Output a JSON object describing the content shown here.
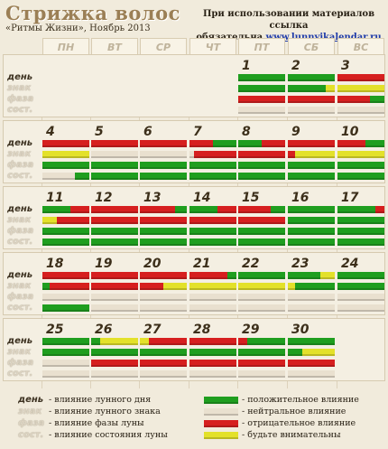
{
  "header": {
    "title": "Стрижка волос",
    "subtitle": "«Ритмы Жизни», Ноябрь 2013",
    "notice_line1": "При использовании материалов ссылка",
    "notice_prefix": "обязательна ",
    "notice_link": "www.lunnyjkalendar.ru"
  },
  "weekdays": [
    "ПН",
    "ВТ",
    "СР",
    "ЧТ",
    "ПТ",
    "СБ",
    "ВС"
  ],
  "row_labels": {
    "day": "день",
    "sign": "знак",
    "phase": "фаза",
    "state": "сост."
  },
  "colors": {
    "positive": "#1f9e1f",
    "negative": "#d61f1f",
    "attention": "#e3e12a",
    "neutral": "#e9e0cf"
  },
  "days": [
    {
      "n": "1",
      "col": 4,
      "week": 0,
      "day": [
        [
          "g",
          1
        ]
      ],
      "sign": [
        [
          "g",
          1
        ]
      ],
      "phase": [
        [
          "r",
          1
        ]
      ],
      "state": [
        [
          "n",
          1
        ]
      ]
    },
    {
      "n": "2",
      "col": 5,
      "week": 0,
      "day": [
        [
          "g",
          1
        ]
      ],
      "sign": [
        [
          "g",
          0.8
        ],
        [
          "y",
          0.2
        ]
      ],
      "phase": [
        [
          "r",
          1
        ]
      ],
      "state": [
        [
          "n",
          1
        ]
      ]
    },
    {
      "n": "3",
      "col": 6,
      "week": 0,
      "day": [
        [
          "r",
          1
        ]
      ],
      "sign": [
        [
          "y",
          1
        ]
      ],
      "phase": [
        [
          "r",
          0.7
        ],
        [
          "g",
          0.3
        ]
      ],
      "state": [
        [
          "n",
          1
        ]
      ]
    },
    {
      "n": "4",
      "col": 0,
      "week": 1,
      "day": [
        [
          "r",
          1
        ]
      ],
      "sign": [
        [
          "y",
          1
        ]
      ],
      "phase": [
        [
          "g",
          1
        ]
      ],
      "state": [
        [
          "n",
          0.7
        ],
        [
          "g",
          0.3
        ]
      ]
    },
    {
      "n": "5",
      "col": 1,
      "week": 1,
      "day": [
        [
          "r",
          1
        ]
      ],
      "sign": [
        [
          "n",
          1
        ]
      ],
      "phase": [
        [
          "g",
          1
        ]
      ],
      "state": [
        [
          "g",
          1
        ]
      ]
    },
    {
      "n": "6",
      "col": 2,
      "week": 1,
      "day": [
        [
          "r",
          1
        ]
      ],
      "sign": [
        [
          "n",
          1
        ]
      ],
      "phase": [
        [
          "g",
          1
        ]
      ],
      "state": [
        [
          "g",
          1
        ]
      ]
    },
    {
      "n": "7",
      "col": 3,
      "week": 1,
      "day": [
        [
          "r",
          0.5
        ],
        [
          "g",
          0.5
        ]
      ],
      "sign": [
        [
          "n",
          0.1
        ],
        [
          "r",
          0.9
        ]
      ],
      "phase": [
        [
          "g",
          1
        ]
      ],
      "state": [
        [
          "g",
          1
        ]
      ]
    },
    {
      "n": "8",
      "col": 4,
      "week": 1,
      "day": [
        [
          "g",
          0.5
        ],
        [
          "r",
          0.5
        ]
      ],
      "sign": [
        [
          "r",
          1
        ]
      ],
      "phase": [
        [
          "g",
          1
        ]
      ],
      "state": [
        [
          "g",
          1
        ]
      ]
    },
    {
      "n": "9",
      "col": 5,
      "week": 1,
      "day": [
        [
          "r",
          1
        ]
      ],
      "sign": [
        [
          "r",
          0.15
        ],
        [
          "y",
          0.85
        ]
      ],
      "phase": [
        [
          "g",
          1
        ]
      ],
      "state": [
        [
          "g",
          1
        ]
      ]
    },
    {
      "n": "10",
      "col": 6,
      "week": 1,
      "day": [
        [
          "r",
          0.6
        ],
        [
          "g",
          0.4
        ]
      ],
      "sign": [
        [
          "y",
          1
        ]
      ],
      "phase": [
        [
          "g",
          1
        ]
      ],
      "state": [
        [
          "g",
          1
        ]
      ]
    },
    {
      "n": "11",
      "col": 0,
      "week": 2,
      "day": [
        [
          "g",
          0.6
        ],
        [
          "r",
          0.4
        ]
      ],
      "sign": [
        [
          "y",
          0.3
        ],
        [
          "r",
          0.7
        ]
      ],
      "phase": [
        [
          "g",
          1
        ]
      ],
      "state": [
        [
          "g",
          1
        ]
      ]
    },
    {
      "n": "12",
      "col": 1,
      "week": 2,
      "day": [
        [
          "r",
          1
        ]
      ],
      "sign": [
        [
          "r",
          1
        ]
      ],
      "phase": [
        [
          "g",
          1
        ]
      ],
      "state": [
        [
          "g",
          1
        ]
      ]
    },
    {
      "n": "13",
      "col": 2,
      "week": 2,
      "day": [
        [
          "r",
          0.75
        ],
        [
          "g",
          0.25
        ]
      ],
      "sign": [
        [
          "r",
          1
        ]
      ],
      "phase": [
        [
          "g",
          1
        ]
      ],
      "state": [
        [
          "g",
          1
        ]
      ]
    },
    {
      "n": "14",
      "col": 3,
      "week": 2,
      "day": [
        [
          "g",
          0.6
        ],
        [
          "r",
          0.4
        ]
      ],
      "sign": [
        [
          "r",
          1
        ]
      ],
      "phase": [
        [
          "g",
          1
        ]
      ],
      "state": [
        [
          "g",
          1
        ]
      ]
    },
    {
      "n": "15",
      "col": 4,
      "week": 2,
      "day": [
        [
          "r",
          0.7
        ],
        [
          "g",
          0.3
        ]
      ],
      "sign": [
        [
          "r",
          1
        ]
      ],
      "phase": [
        [
          "g",
          1
        ]
      ],
      "state": [
        [
          "g",
          1
        ]
      ]
    },
    {
      "n": "16",
      "col": 5,
      "week": 2,
      "day": [
        [
          "g",
          1
        ]
      ],
      "sign": [
        [
          "g",
          1
        ]
      ],
      "phase": [
        [
          "g",
          1
        ]
      ],
      "state": [
        [
          "g",
          1
        ]
      ]
    },
    {
      "n": "17",
      "col": 6,
      "week": 2,
      "day": [
        [
          "g",
          0.8
        ],
        [
          "r",
          0.2
        ]
      ],
      "sign": [
        [
          "g",
          1
        ]
      ],
      "phase": [
        [
          "g",
          1
        ]
      ],
      "state": [
        [
          "g",
          1
        ]
      ]
    },
    {
      "n": "18",
      "col": 0,
      "week": 3,
      "day": [
        [
          "r",
          1
        ]
      ],
      "sign": [
        [
          "g",
          0.15
        ],
        [
          "r",
          0.85
        ]
      ],
      "phase": [
        [
          "n",
          1
        ]
      ],
      "state": [
        [
          "g",
          1
        ]
      ]
    },
    {
      "n": "19",
      "col": 1,
      "week": 3,
      "day": [
        [
          "r",
          1
        ]
      ],
      "sign": [
        [
          "r",
          1
        ]
      ],
      "phase": [
        [
          "n",
          1
        ]
      ],
      "state": [
        [
          "n",
          1
        ]
      ]
    },
    {
      "n": "20",
      "col": 2,
      "week": 3,
      "day": [
        [
          "r",
          1
        ]
      ],
      "sign": [
        [
          "r",
          0.5
        ],
        [
          "y",
          0.5
        ]
      ],
      "phase": [
        [
          "n",
          1
        ]
      ],
      "state": [
        [
          "n",
          1
        ]
      ]
    },
    {
      "n": "21",
      "col": 3,
      "week": 3,
      "day": [
        [
          "r",
          0.8
        ],
        [
          "g",
          0.2
        ]
      ],
      "sign": [
        [
          "y",
          1
        ]
      ],
      "phase": [
        [
          "n",
          1
        ]
      ],
      "state": [
        [
          "n",
          1
        ]
      ]
    },
    {
      "n": "22",
      "col": 4,
      "week": 3,
      "day": [
        [
          "g",
          1
        ]
      ],
      "sign": [
        [
          "y",
          1
        ]
      ],
      "phase": [
        [
          "n",
          1
        ]
      ],
      "state": [
        [
          "n",
          1
        ]
      ]
    },
    {
      "n": "23",
      "col": 5,
      "week": 3,
      "day": [
        [
          "g",
          0.7
        ],
        [
          "y",
          0.3
        ]
      ],
      "sign": [
        [
          "y",
          0.15
        ],
        [
          "g",
          0.85
        ]
      ],
      "phase": [
        [
          "n",
          1
        ]
      ],
      "state": [
        [
          "n",
          1
        ]
      ]
    },
    {
      "n": "24",
      "col": 6,
      "week": 3,
      "day": [
        [
          "g",
          1
        ]
      ],
      "sign": [
        [
          "g",
          1
        ]
      ],
      "phase": [
        [
          "n",
          1
        ]
      ],
      "state": [
        [
          "n",
          1
        ]
      ]
    },
    {
      "n": "25",
      "col": 0,
      "week": 4,
      "day": [
        [
          "g",
          1
        ]
      ],
      "sign": [
        [
          "g",
          1
        ]
      ],
      "phase": [
        [
          "n",
          1
        ]
      ],
      "state": [
        [
          "n",
          1
        ]
      ]
    },
    {
      "n": "26",
      "col": 1,
      "week": 4,
      "day": [
        [
          "g",
          0.2
        ],
        [
          "y",
          0.8
        ]
      ],
      "sign": [
        [
          "g",
          1
        ]
      ],
      "phase": [
        [
          "r",
          1
        ]
      ],
      "state": [
        [
          "n",
          1
        ]
      ]
    },
    {
      "n": "27",
      "col": 2,
      "week": 4,
      "day": [
        [
          "y",
          0.2
        ],
        [
          "r",
          0.8
        ]
      ],
      "sign": [
        [
          "g",
          1
        ]
      ],
      "phase": [
        [
          "r",
          1
        ]
      ],
      "state": [
        [
          "n",
          1
        ]
      ]
    },
    {
      "n": "28",
      "col": 3,
      "week": 4,
      "day": [
        [
          "r",
          1
        ]
      ],
      "sign": [
        [
          "g",
          1
        ]
      ],
      "phase": [
        [
          "r",
          1
        ]
      ],
      "state": [
        [
          "n",
          1
        ]
      ]
    },
    {
      "n": "29",
      "col": 4,
      "week": 4,
      "day": [
        [
          "r",
          0.2
        ],
        [
          "g",
          0.8
        ]
      ],
      "sign": [
        [
          "g",
          1
        ]
      ],
      "phase": [
        [
          "r",
          1
        ]
      ],
      "state": [
        [
          "n",
          1
        ]
      ]
    },
    {
      "n": "30",
      "col": 5,
      "week": 4,
      "day": [
        [
          "g",
          1
        ]
      ],
      "sign": [
        [
          "g",
          0.3
        ],
        [
          "y",
          0.7
        ]
      ],
      "phase": [
        [
          "r",
          1
        ]
      ],
      "state": [
        [
          "n",
          1
        ]
      ]
    }
  ],
  "legend_left": [
    {
      "label": "день",
      "text": "- влияние лунного дня"
    },
    {
      "label": "знак",
      "text": "- влияние лунного знака"
    },
    {
      "label": "фаза",
      "text": "- влияние фазы луны"
    },
    {
      "label": "сост.",
      "text": "- влияние состояния луны"
    }
  ],
  "legend_right": [
    {
      "color": "g",
      "text": "- положительное влияние"
    },
    {
      "color": "n",
      "text": "- нейтральное влияние"
    },
    {
      "color": "r",
      "text": "- отрицательное влияние"
    },
    {
      "color": "y",
      "text": "- будьте внимательны"
    }
  ]
}
